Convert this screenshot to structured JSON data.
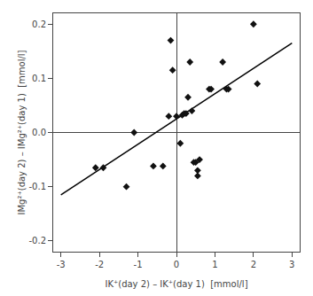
{
  "chart_data": {
    "type": "scatter",
    "xlabel": "IK⁺(day 2) – IK⁺(day 1)  [mmol/l]",
    "ylabel": "IMg²⁺(day 2) – IMg²⁺(day 1)  [mmol/l]",
    "xlim": [
      -3.2,
      3.2
    ],
    "ylim": [
      -0.22,
      0.22
    ],
    "xticks": [
      -3,
      -2,
      -1,
      0,
      1,
      2,
      3
    ],
    "yticks": [
      -0.2,
      -0.1,
      {
        "value": 0.0,
        "label": "0.0"
      },
      0.1,
      0.2
    ],
    "grid": false,
    "series": [
      {
        "type": "scatter",
        "marker": "diamond",
        "color": "#111111",
        "x": [
          -2.1,
          -1.9,
          -1.3,
          -1.1,
          -0.6,
          -0.35,
          -0.2,
          -0.1,
          0.0,
          0.1,
          0.15,
          0.2,
          0.25,
          0.3,
          0.35,
          0.4,
          0.45,
          0.5,
          0.55,
          0.6,
          0.85,
          0.9,
          1.2,
          1.3,
          1.35,
          2.0,
          2.1,
          -0.15,
          0.55
        ],
        "values": [
          -0.065,
          -0.065,
          -0.1,
          0.0,
          -0.062,
          -0.062,
          0.03,
          0.115,
          0.03,
          -0.02,
          0.032,
          0.035,
          0.035,
          0.065,
          0.13,
          0.04,
          -0.055,
          -0.055,
          -0.07,
          -0.05,
          0.08,
          0.08,
          0.13,
          0.08,
          0.08,
          0.2,
          0.09,
          0.17,
          -0.08
        ]
      },
      {
        "type": "line",
        "line_style": "solid",
        "color": "black",
        "x": [
          -3.0,
          3.0
        ],
        "values": [
          -0.115,
          0.165
        ]
      }
    ]
  }
}
